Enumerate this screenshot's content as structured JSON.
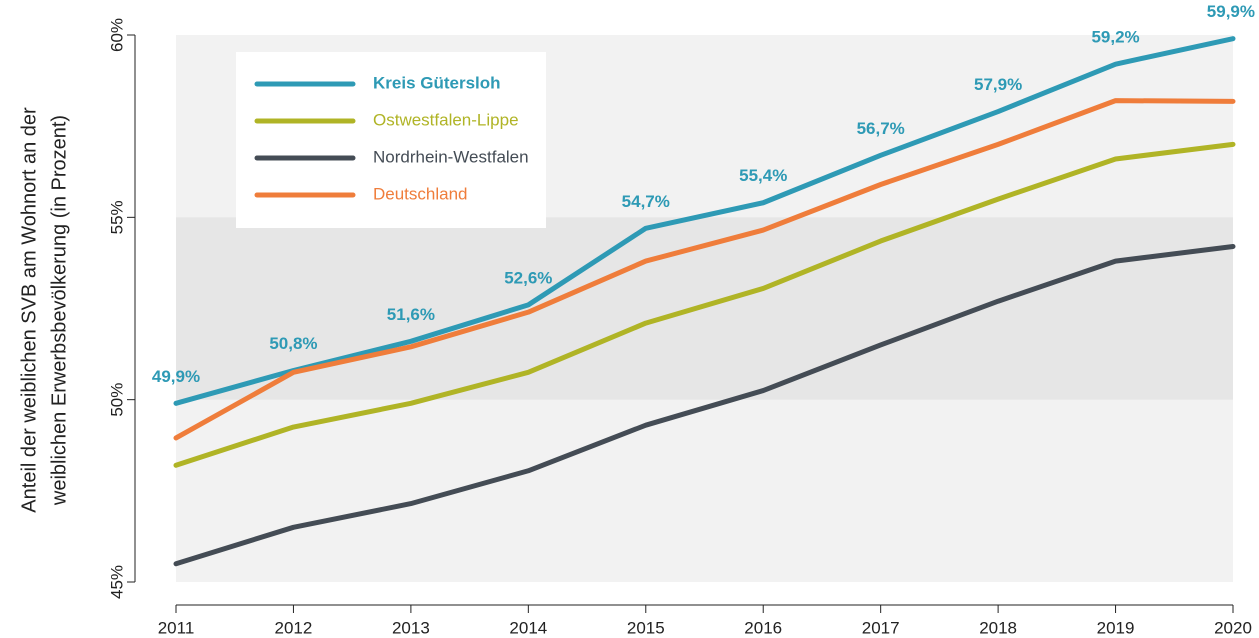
{
  "chart_data": {
    "type": "line",
    "ylabel": [
      "Anteil der weiblichen SVB am Wohnort an der",
      "weiblichen Erwerbsbevölkerung (in Prozent)"
    ],
    "x": [
      2011,
      2012,
      2013,
      2014,
      2015,
      2016,
      2017,
      2018,
      2019,
      2020
    ],
    "xlim": [
      2011,
      2020
    ],
    "xticks": [
      2011,
      2012,
      2013,
      2014,
      2015,
      2016,
      2017,
      2018,
      2019,
      2020
    ],
    "ylim": [
      45,
      60
    ],
    "yticks": [
      {
        "value": 45,
        "label": "45%"
      },
      {
        "value": 50,
        "label": "50%"
      },
      {
        "value": 55,
        "label": "55%"
      },
      {
        "value": 60,
        "label": "60%"
      }
    ],
    "bands": [
      {
        "from": 45,
        "to": 60,
        "color": "#f2f2f2"
      },
      {
        "from": 50,
        "to": 55,
        "color": "#e6e6e6"
      }
    ],
    "legend": "upper left",
    "series": [
      {
        "name": "Kreis Gütersloh",
        "color": "#2e9ab5",
        "values": [
          49.9,
          50.8,
          51.6,
          52.6,
          54.7,
          55.4,
          56.7,
          57.9,
          59.2,
          59.9
        ],
        "value_labels": [
          "49,9%",
          "50,8%",
          "51,6%",
          "52,6%",
          "54,7%",
          "55,4%",
          "56,7%",
          "57,9%",
          "59,2%",
          "59,9%"
        ]
      },
      {
        "name": "Ostwestfalen-Lippe",
        "color": "#b0b426",
        "values": [
          48.2,
          49.25,
          49.9,
          50.75,
          52.1,
          53.05,
          54.35,
          55.5,
          56.6,
          57.0
        ]
      },
      {
        "name": "Nordrhein-Westfalen",
        "color": "#444c55",
        "values": [
          45.5,
          46.5,
          47.15,
          48.05,
          49.3,
          50.25,
          51.5,
          52.7,
          53.8,
          54.2
        ]
      },
      {
        "name": "Deutschland",
        "color": "#ef7d3b",
        "values": [
          48.95,
          50.75,
          51.45,
          52.4,
          53.8,
          54.65,
          55.9,
          57.0,
          58.2,
          58.18
        ]
      }
    ]
  }
}
